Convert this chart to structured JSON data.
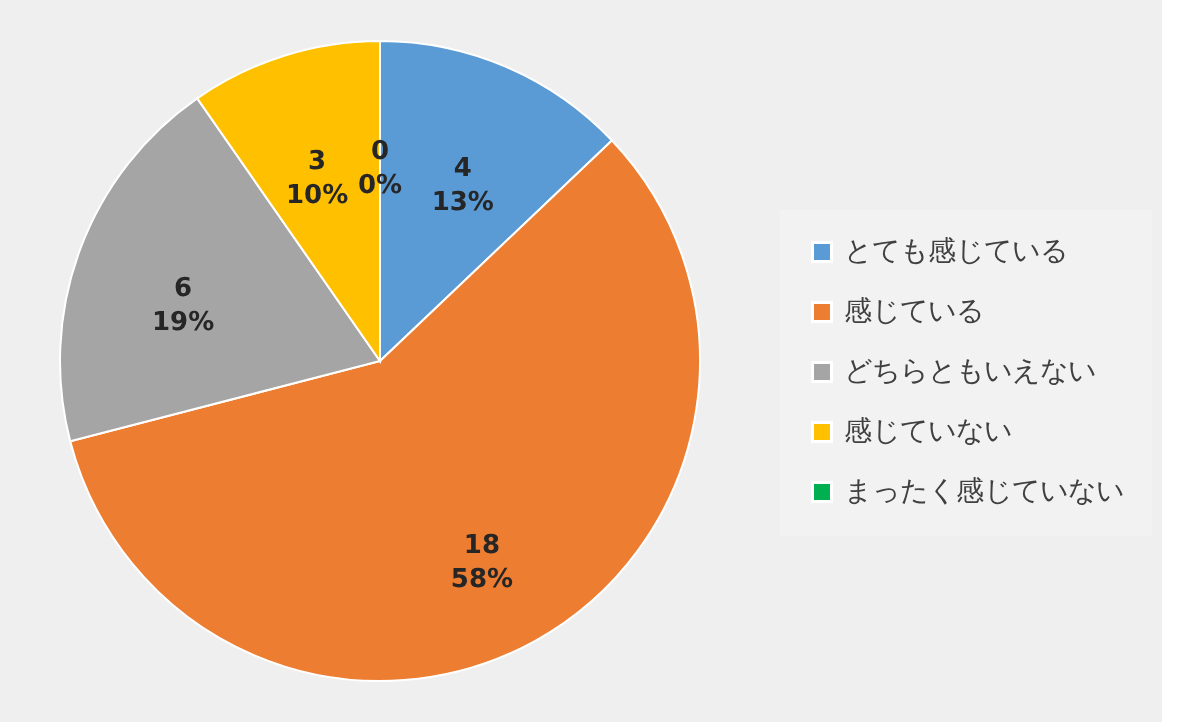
{
  "chart_data": {
    "type": "pie",
    "categories": [
      "とても感じている",
      "感じている",
      "どちらともいえない",
      "感じていない",
      "まったく感じていない"
    ],
    "values": [
      4,
      18,
      6,
      3,
      0
    ],
    "colors": [
      "#5b9bd5",
      "#ed7d31",
      "#a5a5a5",
      "#ffc000",
      "#00b050"
    ],
    "value_labels": [
      "4\n13%",
      "18\n58%",
      "6\n19%",
      "3\n10%",
      "0\n0%"
    ],
    "legend": "right"
  }
}
